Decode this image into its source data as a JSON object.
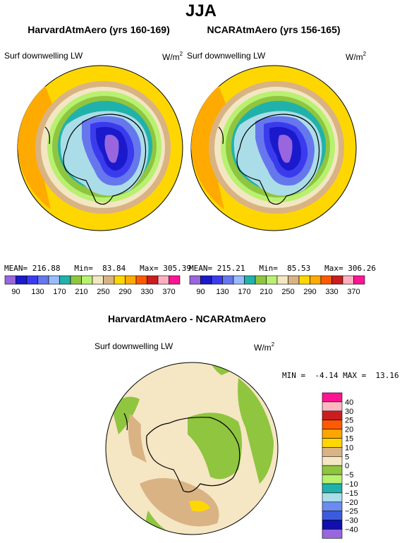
{
  "page": {
    "title": "JJA"
  },
  "panel_left": {
    "title": "HarvardAtmAero (yrs 160-169)",
    "variable": "Surf downwelling LW",
    "units": "W/m",
    "units_sup": "2",
    "stats": {
      "mean_label": "MEAN=",
      "mean": "216.88",
      "min_label": "Min=",
      "min": "83.84",
      "max_label": "Max=",
      "max": "305.39"
    }
  },
  "panel_right": {
    "title": "NCARAtmAero (yrs 156-165)",
    "variable": "Surf downwelling LW",
    "units": "W/m",
    "units_sup": "2",
    "stats": {
      "mean_label": "MEAN=",
      "mean": "215.21",
      "min_label": "Min=",
      "min": "85.53",
      "max_label": "Max=",
      "max": "306.26"
    }
  },
  "colorbar_main": {
    "colors": [
      "#9966dd",
      "#1a1acc",
      "#3b3bee",
      "#6677ee",
      "#99bbff",
      "#20b2aa",
      "#8fc53f",
      "#b8f070",
      "#f3e6c2",
      "#d9b383",
      "#ffd700",
      "#ffaa00",
      "#ff5a00",
      "#c91e1e",
      "#ffb0c0",
      "#ff1493"
    ],
    "labels": [
      "90",
      "130",
      "170",
      "210",
      "250",
      "290",
      "330",
      "370"
    ]
  },
  "panel_diff": {
    "title": "HarvardAtmAero - NCARAtmAero",
    "variable": "Surf downwelling LW",
    "units": "W/m",
    "units_sup": "2",
    "stats": {
      "min_label": "MIN =",
      "min": "-4.14",
      "max_label": "MAX =",
      "max": "13.16"
    }
  },
  "colorbar_diff": {
    "colors": [
      "#ff1493",
      "#ffb6c1",
      "#c91e1e",
      "#ff5a00",
      "#ffa500",
      "#ffd700",
      "#d9b383",
      "#f5e6c4",
      "#8fc53f",
      "#b8f070",
      "#20b2aa",
      "#aadde8",
      "#6a8cf0",
      "#3b5bdd",
      "#1010b0",
      "#9966dd"
    ],
    "labels": [
      "40",
      "30",
      "25",
      "20",
      "15",
      "10",
      "5",
      "0",
      "−5",
      "−10",
      "−15",
      "−20",
      "−25",
      "−30",
      "−40"
    ]
  }
}
